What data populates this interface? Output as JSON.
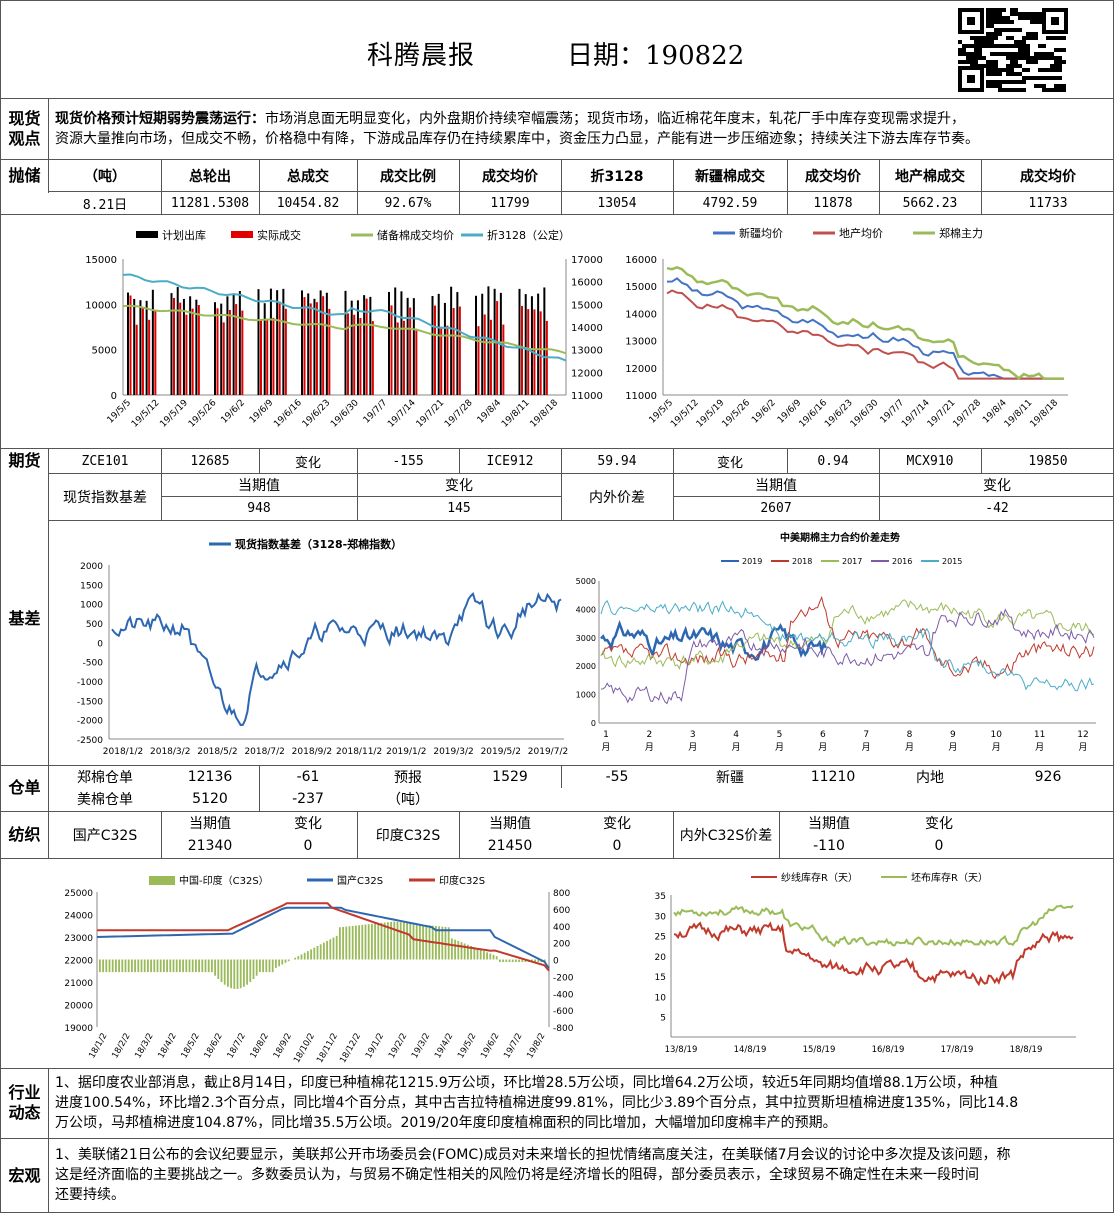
{
  "header": {
    "title": "科腾晨报",
    "date_label": "日期：190822"
  },
  "spot": {
    "label": "现货\n观点",
    "headline": "现货价格预计短期弱势震荡运行：",
    "body_line1": "市场消息面无明显变化，内外盘期价持续窄幅震荡；现货市场，临近棉花年度末，轧花厂手中库存变现需求提升，",
    "body_line2": "资源大量推向市场，但成交不畅，价格稳中有降，下游成品库存仍在持续累库中，资金压力凸显，产能有进一步压缩迹象；持续关注下游去库存节奏。"
  },
  "auction": {
    "label": "抛储",
    "headers": [
      "（吨）",
      "总轮出",
      "总成交",
      "成交比例",
      "成交均价",
      "折3128",
      "新疆棉成交",
      "成交均价",
      "地产棉成交",
      "成交均价"
    ],
    "values": [
      "8.21日",
      "11281.5308",
      "10454.82",
      "92.67%",
      "11799",
      "13054",
      "4792.59",
      "11878",
      "5662.23",
      "11733"
    ]
  },
  "chart1": {
    "legend": [
      "计划出库",
      "实际成交",
      "储备棉成交均价",
      "折3128（公定）"
    ],
    "colors": [
      "#000000",
      "#e00000",
      "#9bbb59",
      "#4bacc6"
    ],
    "yleft": [
      "15000",
      "10000",
      "5000",
      "0"
    ],
    "yright": [
      "17000",
      "16000",
      "15000",
      "14000",
      "13000",
      "12000",
      "11000"
    ],
    "xticks": [
      "19/5/5",
      "19/5/12",
      "19/5/19",
      "19/5/26",
      "19/6/2",
      "19/6/9",
      "19/6/16",
      "19/6/23",
      "19/6/30",
      "19/7/7",
      "19/7/14",
      "19/7/21",
      "19/7/28",
      "19/8/4",
      "19/8/11",
      "19/8/18"
    ]
  },
  "chart2": {
    "legend": [
      "新疆均价",
      "地产均价",
      "郑棉主力"
    ],
    "colors": [
      "#4472c4",
      "#c0504d",
      "#9bbb59"
    ],
    "yticks": [
      "16000",
      "15000",
      "14000",
      "13000",
      "12000",
      "11000"
    ],
    "xticks": [
      "19/5/5",
      "19/5/12",
      "19/5/19",
      "19/5/26",
      "19/6/2",
      "19/6/9",
      "19/6/16",
      "19/6/23",
      "19/6/30",
      "19/7/7",
      "19/7/14",
      "19/7/21",
      "19/7/28",
      "19/8/4",
      "19/8/11",
      "19/8/18"
    ]
  },
  "futures": {
    "label": "期货",
    "row": [
      "ZCE101",
      "12685",
      "变化",
      "-155",
      "ICE912",
      "59.94",
      "变化",
      "0.94",
      "MCX910",
      "19850"
    ],
    "basis_name": "现货指数基差",
    "headers1": [
      "当期值",
      "变化"
    ],
    "values1": [
      "948",
      "145"
    ],
    "spread_name": "内外价差",
    "headers2": [
      "当期值",
      "变化"
    ],
    "values2": [
      "2607",
      "-42"
    ]
  },
  "basis": {
    "label": "基差",
    "chart3_title": "现货指数基差（3128-郑棉指数）",
    "chart3_y": [
      "2000",
      "1500",
      "1000",
      "500",
      "0",
      "-500",
      "-1000",
      "-1500",
      "-2000",
      "-2500"
    ],
    "chart3_x": [
      "2018/1/2",
      "2018/3/2",
      "2018/5/2",
      "2018/7/2",
      "2018/9/2",
      "2018/11/2",
      "2019/1/2",
      "2019/3/2",
      "2019/5/2",
      "2019/7/2"
    ],
    "chart4_title": "中美期棉主力合约价差走势",
    "chart4_legend": [
      "2019",
      "2018",
      "2017",
      "2016",
      "2015"
    ],
    "chart4_colors": [
      "#2e67b1",
      "#c0392b",
      "#9bbb59",
      "#7d5ba6",
      "#4bacc6"
    ],
    "chart4_y": [
      "5000",
      "4000",
      "3000",
      "2000",
      "1000",
      "0"
    ],
    "chart4_x": [
      "1\n月",
      "2\n月",
      "3\n月",
      "4\n月",
      "5\n月",
      "6\n月",
      "7\n月",
      "8\n月",
      "9\n月",
      "10\n月",
      "11\n月",
      "12\n月"
    ]
  },
  "warehouse": {
    "label": "仓单",
    "r1": [
      "郑棉仓单",
      "12136",
      "-61",
      "预报",
      "1529",
      "-55",
      "新疆",
      "11210",
      "内地",
      "926"
    ],
    "r2": [
      "美棉仓单",
      "5120",
      "-237",
      "（吨）"
    ]
  },
  "textile": {
    "label": "纺织",
    "dom_name": "国产C32S",
    "h": [
      "当期值",
      "变化"
    ],
    "dom_vals": [
      "21340",
      "0"
    ],
    "ind_name": "印度C32S",
    "ind_vals": [
      "21450",
      "0"
    ],
    "spread_name": "内外C32S价差",
    "spread_vals": [
      "-110",
      "0"
    ]
  },
  "chart5": {
    "legend": [
      "中国-印度（C32S）",
      "国产C32S",
      "印度C32S"
    ],
    "colors": [
      "#9bbb59",
      "#2e67b1",
      "#c0392b"
    ],
    "yleft": [
      "25000",
      "24000",
      "23000",
      "22000",
      "21000",
      "20000",
      "19000"
    ],
    "yright": [
      "800",
      "600",
      "400",
      "200",
      "0",
      "-200",
      "-400",
      "-600",
      "-800"
    ],
    "xticks": [
      "18/1/2",
      "18/2/2",
      "18/3/2",
      "18/4/2",
      "18/5/2",
      "18/6/2",
      "18/7/2",
      "18/8/2",
      "18/9/2",
      "18/10/2",
      "18/11/2",
      "18/12/2",
      "19/1/2",
      "19/2/2",
      "19/3/2",
      "19/4/2",
      "19/5/2",
      "19/6/2",
      "19/7/2",
      "19/8/2"
    ]
  },
  "chart6": {
    "legend": [
      "纱线库存R（天）",
      "坯布库存R（天）"
    ],
    "colors": [
      "#c0392b",
      "#9bbb59"
    ],
    "yticks": [
      "35",
      "30",
      "25",
      "20",
      "15",
      "10",
      "5"
    ],
    "xticks": [
      "13/8/19",
      "14/8/19",
      "15/8/19",
      "16/8/19",
      "17/8/19",
      "18/8/19"
    ]
  },
  "industry": {
    "label": "行业\n动态",
    "lines": [
      "1、据印度农业部消息，截止8月14日，印度已种植棉花1215.9万公顷，环比增28.5万公顷，同比增64.2万公顷，较近5年同期均值增88.1万公顷，种植",
      "进度100.54%，环比增2.3个百分点，同比增4个百分点，其中古吉拉特植棉进度99.81%，同比少3.89个百分点，其中拉贾斯坦植棉进度135%，同比14.8",
      "万公顷，马邦植棉进度104.87%，同比增35.5万公顷。2019/20年度印度植棉面积的同比增加，大幅增加印度棉丰产的预期。"
    ]
  },
  "macro": {
    "label": "宏观",
    "lines": [
      "1、美联储21日公布的会议纪要显示，美联邦公开市场委员会(FOMC)成员对未来增长的担忧情绪高度关注，在美联储7月会议的讨论中多次提及该问题，称",
      "这是经济面临的主要挑战之一。多数委员认为，与贸易不确定性相关的风险仍将是经济增长的阻碍，部分委员表示，全球贸易不确定性在未来一段时间",
      "还要持续。"
    ]
  }
}
